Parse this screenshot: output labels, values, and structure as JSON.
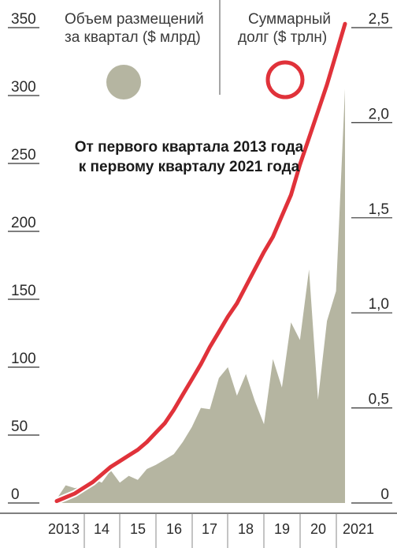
{
  "chart_data": {
    "type": "area+line",
    "annotation": [
      "От первого квартала 2013 года",
      "к первому кварталу 2021 года"
    ],
    "left_axis": {
      "ticks": [
        "350",
        "300",
        "250",
        "200",
        "150",
        "100",
        "50",
        "0"
      ],
      "ylim": [
        0,
        350
      ]
    },
    "right_axis": {
      "ticks": [
        "2,5",
        "2,0",
        "1,5",
        "1,0",
        "0,5",
        "0"
      ],
      "ylim": [
        0,
        2.5
      ]
    },
    "x_labels": [
      "2013",
      "14",
      "15",
      "16",
      "17",
      "18",
      "19",
      "20",
      "2021"
    ],
    "legend": {
      "area_label": [
        "Объем размещений",
        "за квартал ($ млрд)"
      ],
      "line_label": [
        "Суммарный",
        "долг ($ трлн)"
      ]
    },
    "colors": {
      "area": "#b5b5a1",
      "line": "#e0323a",
      "axis": "#333333"
    },
    "series": [
      {
        "name": "Объем размещений за квартал ($ млрд)",
        "axis": "left",
        "style": "area",
        "x": [
          2013.0,
          2013.25,
          2013.5,
          2013.75,
          2014.0,
          2014.25,
          2014.5,
          2014.75,
          2015.0,
          2015.25,
          2015.5,
          2015.75,
          2016.0,
          2016.25,
          2016.5,
          2016.75,
          2017.0,
          2017.25,
          2017.5,
          2017.75,
          2018.0,
          2018.25,
          2018.5,
          2018.75,
          2019.0,
          2019.25,
          2019.5,
          2019.75,
          2020.0,
          2020.25,
          2020.5,
          2020.75,
          2021.0
        ],
        "values": [
          3,
          13,
          11,
          12,
          18,
          15,
          24,
          15,
          20,
          17,
          25,
          28,
          32,
          36,
          45,
          56,
          70,
          69,
          92,
          100,
          79,
          95,
          75,
          58,
          106,
          85,
          133,
          120,
          172,
          76,
          134,
          156,
          305
        ]
      },
      {
        "name": "Суммарный долг ($ трлн)",
        "axis": "right",
        "style": "line",
        "x": [
          2013.0,
          2013.25,
          2013.5,
          2013.75,
          2014.0,
          2014.25,
          2014.5,
          2014.75,
          2015.0,
          2015.25,
          2015.5,
          2015.75,
          2016.0,
          2016.25,
          2016.5,
          2016.75,
          2017.0,
          2017.25,
          2017.5,
          2017.75,
          2018.0,
          2018.25,
          2018.5,
          2018.75,
          2019.0,
          2019.25,
          2019.5,
          2019.75,
          2020.0,
          2020.25,
          2020.5,
          2020.75,
          2021.0
        ],
        "values": [
          0.01,
          0.03,
          0.05,
          0.08,
          0.11,
          0.15,
          0.19,
          0.22,
          0.25,
          0.28,
          0.32,
          0.37,
          0.42,
          0.49,
          0.57,
          0.65,
          0.73,
          0.82,
          0.9,
          0.98,
          1.05,
          1.14,
          1.23,
          1.32,
          1.4,
          1.51,
          1.62,
          1.78,
          1.92,
          2.06,
          2.2,
          2.36,
          2.52
        ]
      }
    ]
  }
}
